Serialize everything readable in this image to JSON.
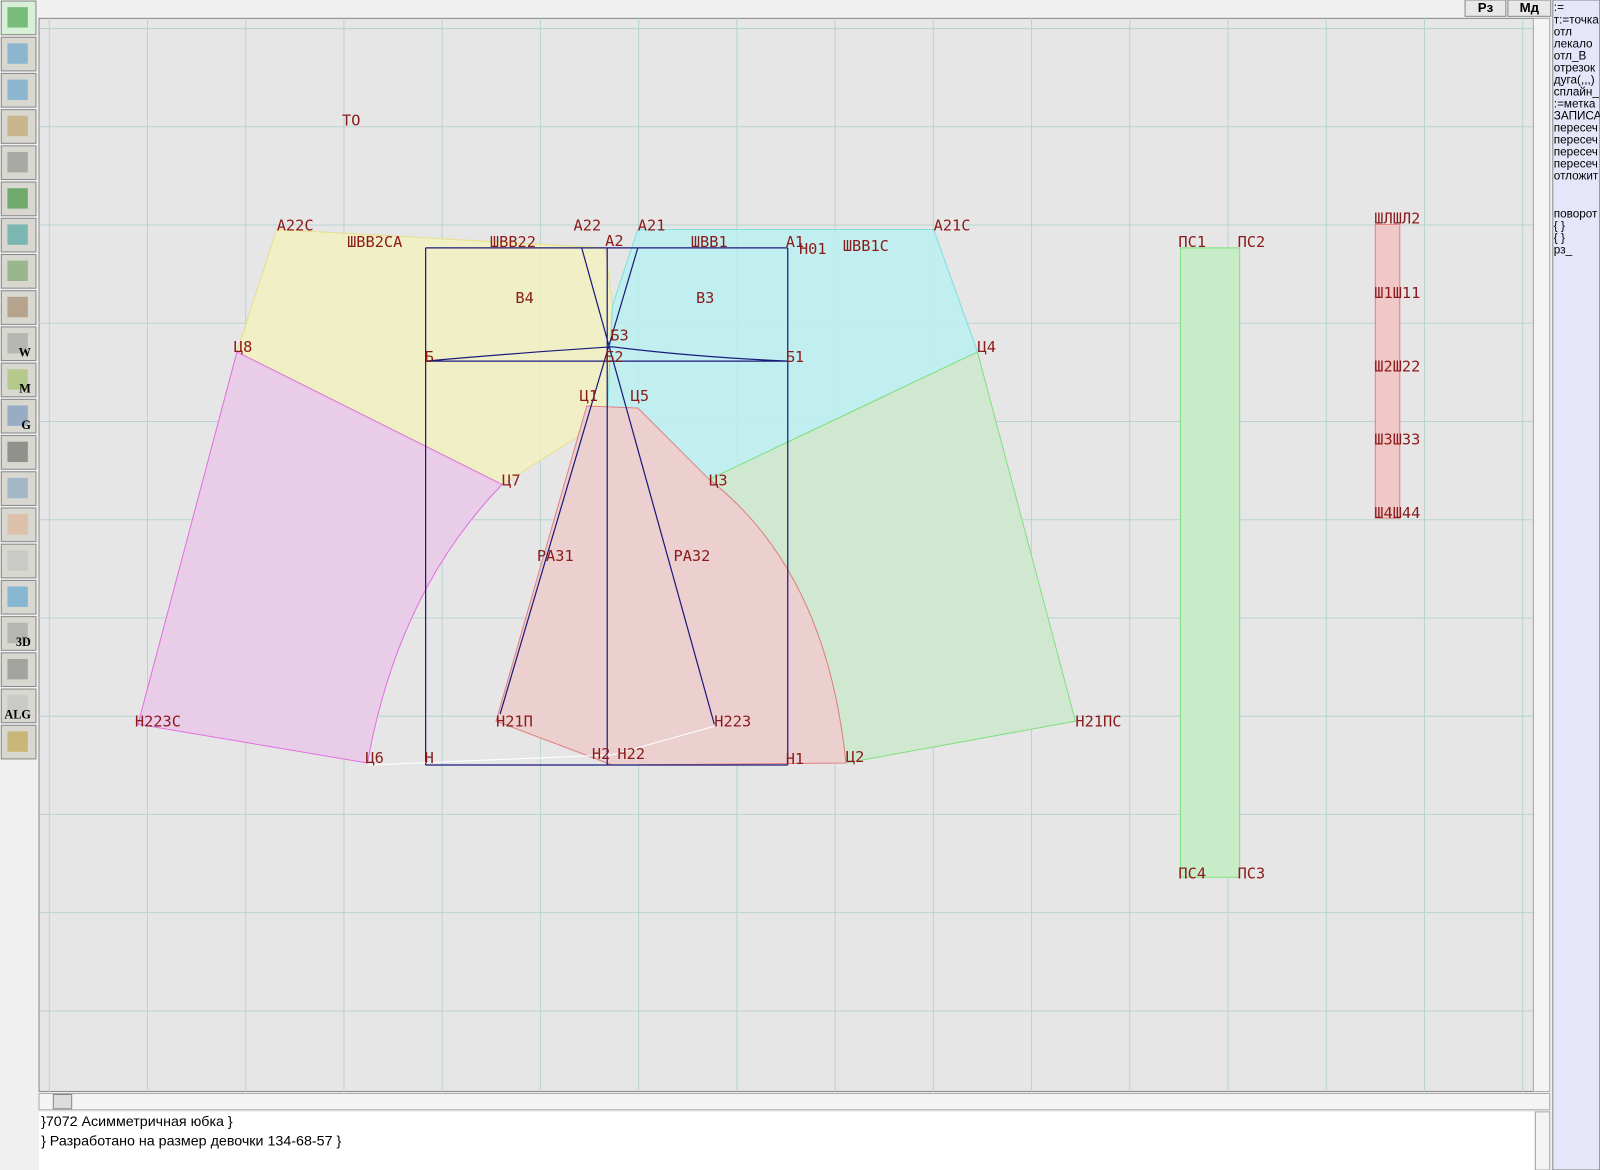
{
  "window": {
    "buttons": [
      "Рз",
      "Мд"
    ]
  },
  "toolbar": {
    "icon_labels": [
      "M",
      "W",
      "G",
      "3D",
      "ALG"
    ]
  },
  "drawing": {
    "labels": [
      "ТО",
      "А22С",
      "ШВВ2СА",
      "ШВВ22",
      "А22",
      "А21",
      "А2",
      "ШВВ1",
      "А1",
      "Н01",
      "ШВВ1С",
      "А21С",
      "В4",
      "В3",
      "Б",
      "Б3",
      "Б2",
      "Б1",
      "Ц8",
      "Ц4",
      "Ц1",
      "Ц5",
      "Ц7",
      "Ц3",
      "РА31",
      "РА32",
      "Н223С",
      "Н21П",
      "Н223",
      "Н21ПС",
      "Ц6",
      "Н",
      "Н2",
      "Н22",
      "Н1",
      "Ц2",
      "ПС1",
      "ПС2",
      "ПС4",
      "ПС3",
      "ШЛШЛ2",
      "Ш1Ш11",
      "Ш2Ш22",
      "Ш3Ш33",
      "Ш4Ш44"
    ]
  },
  "commands": {
    "lines": [
      ":=",
      "т:=точка",
      "отл",
      "лекало",
      "отл_В",
      "отрезок",
      "дуга(,,,)",
      "сплайн_",
      ":=метка",
      "ЗАПИСА",
      "пересеч",
      "пересеч",
      "пересеч",
      "пересеч",
      "отложит"
    ],
    "lines2": [
      "поворот",
      "{ }",
      "{ }",
      "рз_"
    ]
  },
  "console": {
    "lines": [
      "}7072  Асимметричная юбка  }",
      "} Разработано на размер девочки 134-68-57 }"
    ]
  }
}
